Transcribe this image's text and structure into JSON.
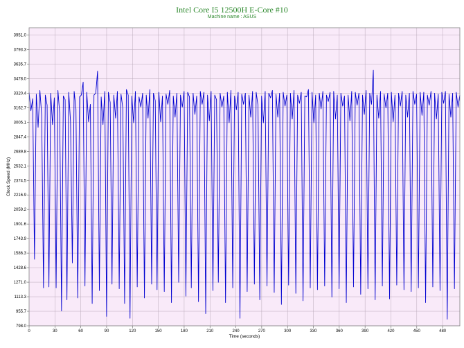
{
  "chart_data": {
    "type": "line",
    "title": "Intel Core I5 12500H E-Core #10",
    "subtitle": "Machine name : ASUS",
    "xlabel": "Time (seconds)",
    "ylabel": "Clock Speed (MHz)",
    "xlim": [
      0,
      500
    ],
    "ylim": [
      798.0,
      4030
    ],
    "x_ticks": [
      "0",
      "30",
      "60",
      "90",
      "120",
      "150",
      "180",
      "210",
      "240",
      "270",
      "300",
      "330",
      "360",
      "390",
      "420",
      "450",
      "480"
    ],
    "y_ticks": [
      "798.0",
      "955.7",
      "1113.3",
      "1271.0",
      "1428.6",
      "1586.3",
      "1743.9",
      "1901.6",
      "2059.2",
      "2216.9",
      "2374.5",
      "2532.1",
      "2689.8",
      "2847.4",
      "3005.1",
      "3162.7",
      "3320.4",
      "3478.0",
      "3635.7",
      "3793.3",
      "3951.0"
    ],
    "grid": true,
    "background_color": "#f9eaf9",
    "line_color": "#0000d0",
    "series": [
      {
        "values": [
          3330,
          3130,
          3260,
          1520,
          3310,
          2950,
          3350,
          3080,
          1210,
          3300,
          3190,
          1220,
          3320,
          2980,
          3270,
          1210,
          3350,
          3100,
          960,
          3290,
          3250,
          1080,
          3330,
          3010,
          1480,
          3340,
          3150,
          1100,
          3280,
          3300,
          3440,
          1230,
          3330,
          3010,
          3200,
          1040,
          3300,
          3320,
          3560,
          1180,
          3280,
          2980,
          3340,
          900,
          3330,
          3220,
          1250,
          3300,
          3050,
          3340,
          1200,
          3310,
          3160,
          1040,
          3360,
          3300,
          880,
          3290,
          3000,
          3340,
          1220,
          3280,
          3170,
          3320,
          1100,
          3300,
          3050,
          3360,
          1250,
          3320,
          3240,
          1190,
          3330,
          3010,
          3290,
          1170,
          3310,
          3200,
          3350,
          1050,
          3290,
          3060,
          3320,
          1270,
          3300,
          3170,
          3340,
          1120,
          3330,
          3280,
          1210,
          3320,
          3090,
          3290,
          1060,
          3340,
          3200,
          3330,
          930,
          3300,
          3020,
          3340,
          1180,
          3300,
          3250,
          1270,
          3320,
          3170,
          3290,
          1050,
          3330,
          3000,
          3350,
          1210,
          3290,
          3140,
          3330,
          880,
          3310,
          3200,
          3320,
          1170,
          3300,
          3060,
          3340,
          1250,
          3330,
          3190,
          1080,
          3290,
          3000,
          3340,
          1230,
          3320,
          3270,
          3350,
          1160,
          3310,
          3060,
          3320,
          1030,
          3330,
          3180,
          3300,
          1240,
          3320,
          3040,
          3350,
          1150,
          3300,
          3210,
          3330,
          1070,
          3290,
          3280,
          3360,
          1210,
          3330,
          3000,
          3300,
          1190,
          3320,
          3150,
          3340,
          1230,
          3300,
          3230,
          3330,
          1110,
          3340,
          3040,
          3300,
          1200,
          3320,
          3180,
          3290,
          1050,
          3300,
          3020,
          3340,
          1220,
          3330,
          3190,
          3320,
          1140,
          3300,
          3090,
          3350,
          1200,
          3320,
          3200,
          3570,
          1080,
          3300,
          3050,
          3340,
          1230,
          3310,
          3160,
          3320,
          1090,
          3330,
          3010,
          3300,
          1240,
          3320,
          3180,
          3340,
          1190,
          3300,
          3060,
          3320,
          1170,
          3340,
          3200,
          3310,
          1210,
          3330,
          3080,
          3330,
          1050,
          3300,
          3190,
          3340,
          1220,
          3320,
          3040,
          3310,
          1180,
          3330,
          3210,
          3340,
          870,
          3310,
          3060,
          3320,
          1200,
          3330,
          3170,
          3300
        ]
      }
    ]
  }
}
